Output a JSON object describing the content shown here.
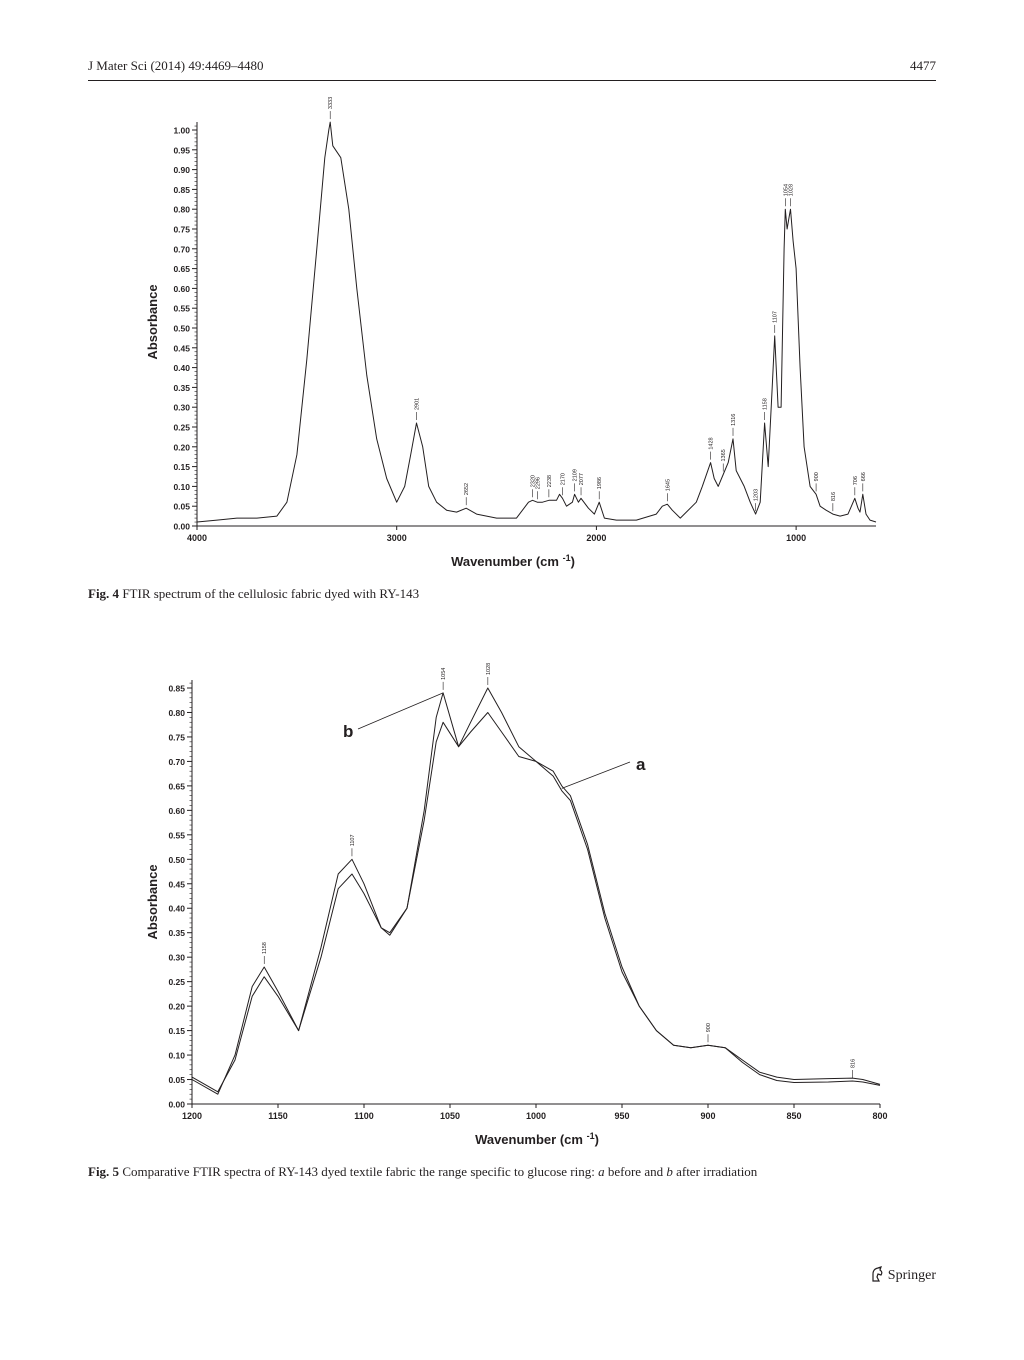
{
  "header": {
    "journal": "J Mater Sci (2014) 49:4469–4480",
    "page_number": "4477"
  },
  "fig4": {
    "caption_label": "Fig. 4",
    "caption_text": "FTIR spectrum of the cellulosic fabric dyed with RY-143"
  },
  "fig5": {
    "caption_label": "Fig. 5",
    "caption_pre": "Comparative FTIR spectra of RY-143 dyed textile fabric the range specific to glucose ring: ",
    "caption_a": "a",
    "caption_mid": " before and ",
    "caption_b": "b",
    "caption_post": " after irradiation"
  },
  "footer": {
    "publisher": "Springer"
  },
  "chart_data": [
    {
      "type": "line",
      "xlabel": "Wavenumber (cm-1)",
      "ylabel": "Absorbance",
      "xlim": [
        4000,
        600
      ],
      "ylim": [
        0,
        1.0
      ],
      "x_ticks": [
        4000,
        3000,
        2000,
        1000
      ],
      "y_ticks": [
        "0.00",
        "0.05",
        "0.10",
        "0.15",
        "0.20",
        "0.25",
        "0.30",
        "0.35",
        "0.40",
        "0.45",
        "0.50",
        "0.55",
        "0.60",
        "0.65",
        "0.70",
        "0.75",
        "0.80",
        "0.85",
        "0.90",
        "0.95",
        "1.00"
      ],
      "series": [
        {
          "x": [
            4000,
            3900,
            3800,
            3700,
            3600,
            3550,
            3500,
            3450,
            3400,
            3360,
            3340,
            3333,
            3320,
            3280,
            3240,
            3200,
            3150,
            3100,
            3050,
            3000,
            2960,
            2930,
            2901,
            2870,
            2840,
            2800,
            2750,
            2700,
            2652,
            2600,
            2500,
            2400,
            2340,
            2320,
            2296,
            2270,
            2238,
            2200,
            2185,
            2170,
            2150,
            2120,
            2109,
            2090,
            2077,
            2040,
            2010,
            1986,
            1960,
            1900,
            1800,
            1700,
            1670,
            1645,
            1620,
            1580,
            1500,
            1470,
            1428,
            1410,
            1390,
            1365,
            1340,
            1316,
            1300,
            1260,
            1230,
            1203,
            1180,
            1158,
            1140,
            1120,
            1107,
            1090,
            1075,
            1060,
            1054,
            1045,
            1035,
            1028,
            1015,
            1000,
            980,
            960,
            930,
            900,
            880,
            850,
            816,
            780,
            740,
            706,
            690,
            680,
            666,
            650,
            630,
            600
          ],
          "y": [
            0.01,
            0.015,
            0.02,
            0.02,
            0.025,
            0.06,
            0.18,
            0.42,
            0.7,
            0.93,
            1.0,
            1.02,
            0.96,
            0.93,
            0.8,
            0.6,
            0.38,
            0.22,
            0.12,
            0.06,
            0.1,
            0.18,
            0.26,
            0.2,
            0.1,
            0.06,
            0.04,
            0.035,
            0.045,
            0.03,
            0.02,
            0.02,
            0.06,
            0.065,
            0.06,
            0.06,
            0.065,
            0.065,
            0.08,
            0.07,
            0.05,
            0.06,
            0.08,
            0.06,
            0.07,
            0.045,
            0.03,
            0.06,
            0.02,
            0.015,
            0.015,
            0.03,
            0.05,
            0.055,
            0.04,
            0.02,
            0.06,
            0.1,
            0.16,
            0.12,
            0.1,
            0.13,
            0.16,
            0.22,
            0.14,
            0.1,
            0.06,
            0.03,
            0.06,
            0.26,
            0.15,
            0.35,
            0.48,
            0.3,
            0.3,
            0.7,
            0.8,
            0.75,
            0.78,
            0.8,
            0.72,
            0.65,
            0.4,
            0.2,
            0.1,
            0.08,
            0.05,
            0.04,
            0.03,
            0.025,
            0.03,
            0.07,
            0.045,
            0.035,
            0.08,
            0.03,
            0.015,
            0.01
          ]
        }
      ],
      "peak_labels": [
        "3333",
        "2901",
        "2652",
        "2320",
        "2296",
        "2238",
        "2170",
        "2109",
        "2077",
        "1986",
        "1645",
        "1428",
        "1365",
        "1316",
        "1203",
        "1158",
        "1107",
        "1054",
        "1028",
        "900",
        "816",
        "706",
        "666"
      ]
    },
    {
      "type": "line",
      "xlabel": "Wavenumber (cm-1)",
      "ylabel": "Absorbance",
      "xlim": [
        1200,
        800
      ],
      "ylim": [
        0,
        0.85
      ],
      "x_ticks": [
        1200,
        1150,
        1100,
        1050,
        1000,
        950,
        900,
        850,
        800
      ],
      "y_ticks": [
        "0.00",
        "0.05",
        "0.10",
        "0.15",
        "0.20",
        "0.25",
        "0.30",
        "0.35",
        "0.40",
        "0.45",
        "0.50",
        "0.55",
        "0.60",
        "0.65",
        "0.70",
        "0.75",
        "0.80",
        "0.85"
      ],
      "series": [
        {
          "name": "a",
          "x": [
            1200,
            1185,
            1175,
            1165,
            1158,
            1150,
            1138,
            1125,
            1115,
            1107,
            1100,
            1090,
            1085,
            1075,
            1065,
            1058,
            1054,
            1045,
            1038,
            1028,
            1020,
            1010,
            1000,
            990,
            985,
            980,
            970,
            960,
            950,
            940,
            930,
            920,
            910,
            900,
            890,
            880,
            870,
            860,
            850,
            830,
            816,
            810,
            800
          ],
          "y": [
            0.055,
            0.025,
            0.09,
            0.22,
            0.26,
            0.22,
            0.15,
            0.3,
            0.44,
            0.47,
            0.43,
            0.36,
            0.35,
            0.4,
            0.58,
            0.74,
            0.78,
            0.73,
            0.76,
            0.8,
            0.76,
            0.71,
            0.7,
            0.67,
            0.64,
            0.62,
            0.52,
            0.38,
            0.27,
            0.2,
            0.15,
            0.12,
            0.115,
            0.12,
            0.115,
            0.09,
            0.065,
            0.055,
            0.05,
            0.052,
            0.053,
            0.05,
            0.04
          ]
        },
        {
          "name": "b",
          "x": [
            1200,
            1185,
            1175,
            1165,
            1158,
            1150,
            1138,
            1125,
            1115,
            1107,
            1100,
            1090,
            1085,
            1075,
            1065,
            1058,
            1054,
            1045,
            1038,
            1028,
            1020,
            1010,
            1000,
            990,
            985,
            980,
            970,
            960,
            950,
            940,
            930,
            920,
            910,
            900,
            890,
            880,
            870,
            860,
            850,
            830,
            816,
            810,
            800
          ],
          "y": [
            0.05,
            0.02,
            0.1,
            0.24,
            0.28,
            0.23,
            0.15,
            0.32,
            0.47,
            0.5,
            0.45,
            0.36,
            0.345,
            0.4,
            0.6,
            0.79,
            0.84,
            0.73,
            0.78,
            0.85,
            0.8,
            0.73,
            0.7,
            0.68,
            0.65,
            0.63,
            0.53,
            0.39,
            0.28,
            0.2,
            0.15,
            0.12,
            0.115,
            0.12,
            0.115,
            0.085,
            0.06,
            0.048,
            0.044,
            0.045,
            0.047,
            0.045,
            0.038
          ]
        }
      ],
      "peak_labels": [
        "1158",
        "1107",
        "1054",
        "1028",
        "900",
        "816"
      ],
      "annotations": [
        "a",
        "b"
      ]
    }
  ]
}
